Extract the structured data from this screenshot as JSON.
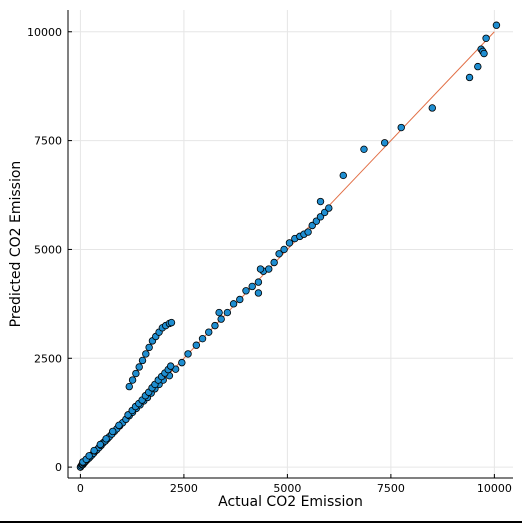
{
  "chart_data": {
    "type": "scatter",
    "title": "",
    "xlabel": "Actual CO2 Emission",
    "ylabel": "Predicted CO2 Emission",
    "xlim": [
      -300,
      10450
    ],
    "ylim": [
      -250,
      10500
    ],
    "xticks": [
      0,
      2500,
      5000,
      7500,
      10000
    ],
    "xtick_labels": [
      "0",
      "2500",
      "5000",
      "7500",
      "10000"
    ],
    "yticks": [
      0,
      2500,
      5000,
      7500,
      10000
    ],
    "ytick_labels": [
      "0",
      "2500",
      "5000",
      "7500",
      "10000"
    ],
    "grid": true,
    "legend": "none",
    "colors": {
      "points": "#1f8ed1",
      "point_edge": "#000000",
      "fit_line": "#e26f46",
      "grid": "#e6e6e6"
    },
    "series": [
      {
        "kind": "reference-line",
        "x": [
          0,
          10000
        ],
        "y": [
          0,
          10000
        ]
      },
      {
        "kind": "points",
        "x": [
          0,
          20,
          40,
          60,
          80,
          100,
          130,
          160,
          200,
          240,
          280,
          320,
          360,
          400,
          450,
          500,
          550,
          600,
          650,
          700,
          760,
          820,
          880,
          950,
          1020,
          1100,
          1180,
          1260,
          1350,
          1440,
          1530,
          1620,
          1710,
          1800,
          1900,
          2000,
          2150,
          2300,
          2450,
          2600,
          2800,
          2950,
          3100,
          3250,
          3400,
          3550,
          3700,
          3850,
          4000,
          4150,
          4300,
          4420,
          4550,
          4680,
          4800,
          4920,
          5050,
          5180,
          5300,
          5400,
          5500,
          5600,
          5700,
          5800,
          5900,
          6000,
          5800,
          6350,
          6850,
          7350,
          7750,
          8500,
          9400,
          9600,
          9680,
          9720,
          9750,
          9800,
          10050,
          60,
          140,
          210,
          330,
          480,
          620,
          780,
          930,
          1150,
          1250,
          1330,
          1410,
          1490,
          1570,
          1650,
          1730,
          1800,
          1880,
          1960,
          2040,
          2120,
          2180,
          1180,
          1260,
          1340,
          1420,
          1500,
          1580,
          1660,
          1740,
          1820,
          1900,
          1980,
          2060,
          2150,
          2200,
          3350,
          4350,
          4300
        ],
        "y": [
          0,
          30,
          60,
          60,
          90,
          110,
          140,
          170,
          200,
          240,
          280,
          320,
          370,
          400,
          450,
          500,
          560,
          600,
          650,
          700,
          760,
          820,
          880,
          950,
          1020,
          1100,
          1180,
          1260,
          1350,
          1430,
          1520,
          1600,
          1700,
          1800,
          1900,
          2000,
          2100,
          2250,
          2400,
          2600,
          2800,
          2950,
          3100,
          3250,
          3400,
          3550,
          3750,
          3850,
          4050,
          4150,
          4250,
          4500,
          4550,
          4700,
          4900,
          5000,
          5150,
          5250,
          5300,
          5350,
          5400,
          5550,
          5650,
          5750,
          5850,
          5950,
          6100,
          6700,
          7300,
          7450,
          7800,
          8250,
          8950,
          9200,
          9600,
          9550,
          9500,
          9850,
          10150,
          120,
          180,
          260,
          380,
          520,
          650,
          820,
          960,
          1200,
          1300,
          1390,
          1460,
          1540,
          1640,
          1720,
          1820,
          1900,
          2000,
          2080,
          2160,
          2240,
          2320,
          1850,
          2000,
          2150,
          2300,
          2450,
          2600,
          2750,
          2900,
          3000,
          3100,
          3200,
          3250,
          3300,
          3320,
          3550,
          4550,
          4000
        ]
      }
    ]
  }
}
